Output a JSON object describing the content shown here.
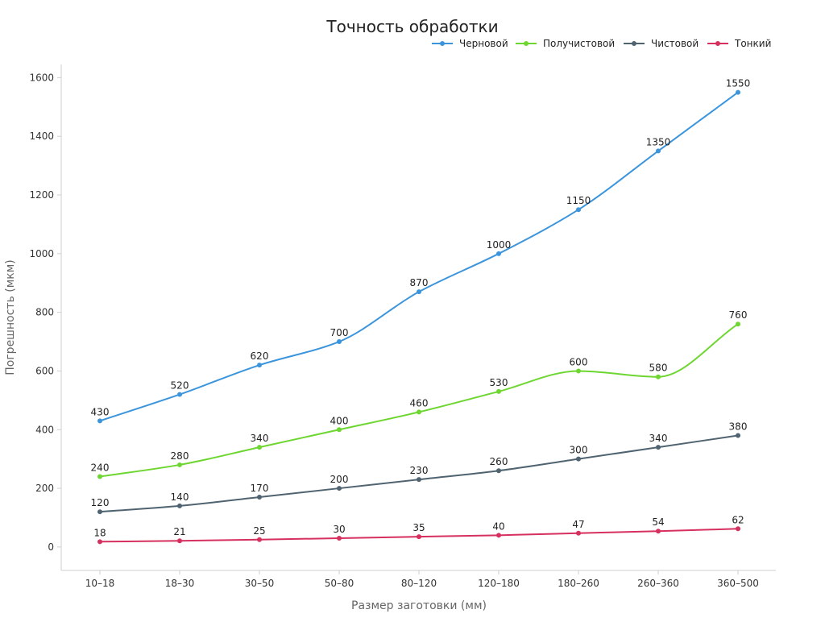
{
  "chart_data": {
    "type": "line",
    "title": "Точность обработки",
    "xlabel": "Размер заготовки (мм)",
    "ylabel": "Погрешность (мкм)",
    "categories": [
      "10–18",
      "18–30",
      "30–50",
      "50–80",
      "80–120",
      "120–180",
      "180–260",
      "260–360",
      "360–500"
    ],
    "ylim": [
      -80,
      1645
    ],
    "yticks": [
      0,
      200,
      400,
      600,
      800,
      1000,
      1200,
      1400,
      1600
    ],
    "grid": false,
    "legend": "top-right",
    "smooth": true,
    "series": [
      {
        "name": "Черновой",
        "color": "#3b95dd",
        "values": [
          430,
          520,
          620,
          700,
          870,
          1000,
          1150,
          1350,
          1550
        ]
      },
      {
        "name": "Получистовой",
        "color": "#6dd630",
        "values": [
          240,
          280,
          340,
          400,
          460,
          530,
          600,
          580,
          760
        ]
      },
      {
        "name": "Чистовой",
        "color": "#4f6370",
        "values": [
          120,
          140,
          170,
          200,
          230,
          260,
          300,
          340,
          380
        ]
      },
      {
        "name": "Тонкий",
        "color": "#d6305f",
        "values": [
          18,
          21,
          25,
          30,
          35,
          40,
          47,
          54,
          62
        ]
      }
    ]
  }
}
